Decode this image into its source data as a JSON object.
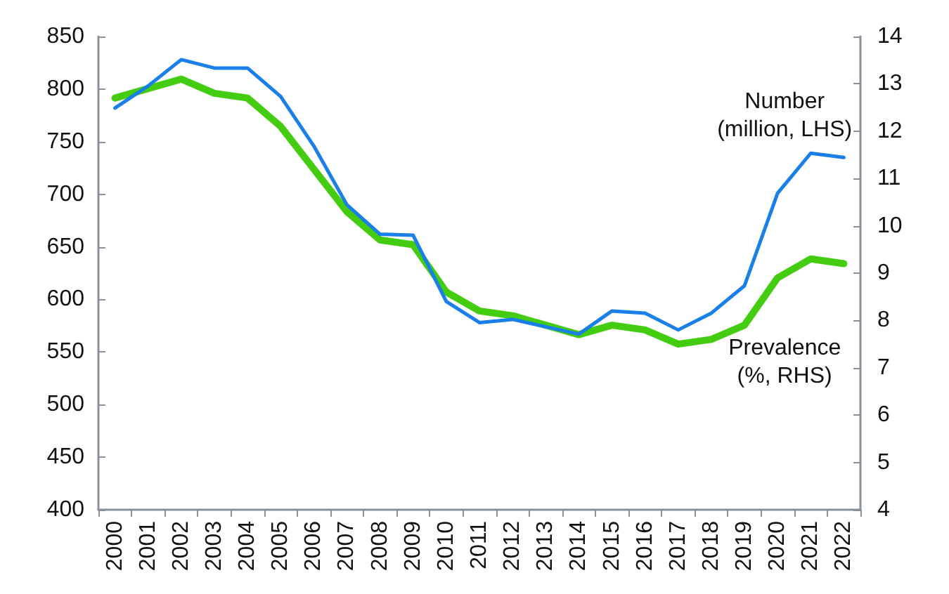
{
  "chart_data": {
    "type": "line",
    "categories": [
      "2000",
      "2001",
      "2002",
      "2003",
      "2004",
      "2005",
      "2006",
      "2007",
      "2008",
      "2009",
      "2010",
      "2011",
      "2012",
      "2013",
      "2014",
      "2015",
      "2016",
      "2017",
      "2018",
      "2019",
      "2020",
      "2021",
      "2022"
    ],
    "series": [
      {
        "name": "Number\n(million, LHS)",
        "color": "#1a7fe8",
        "values": [
          782,
          803,
          828,
          820,
          820,
          793,
          746,
          690,
          662,
          661,
          598,
          578,
          581,
          574,
          567,
          589,
          587,
          571,
          587,
          613,
          701,
          739,
          735
        ]
      },
      {
        "name": "Prevalence\n(%, RHS)",
        "color": "#44cc11",
        "axis": "y2",
        "values": [
          12.7,
          12.9,
          13.1,
          12.8,
          12.7,
          12.1,
          11.2,
          10.3,
          9.7,
          9.6,
          8.6,
          8.2,
          8.1,
          7.9,
          7.7,
          7.9,
          7.8,
          7.5,
          7.6,
          7.9,
          8.9,
          9.3,
          9.2
        ]
      }
    ],
    "ylim": [
      400,
      850
    ],
    "yticks": [
      400,
      450,
      500,
      550,
      600,
      650,
      700,
      750,
      800,
      850
    ],
    "y2lim": [
      4,
      14
    ],
    "y2ticks": [
      4,
      5,
      6,
      7,
      8,
      9,
      10,
      11,
      12,
      13,
      14
    ],
    "grid": false,
    "legend": false,
    "marker": "none"
  }
}
